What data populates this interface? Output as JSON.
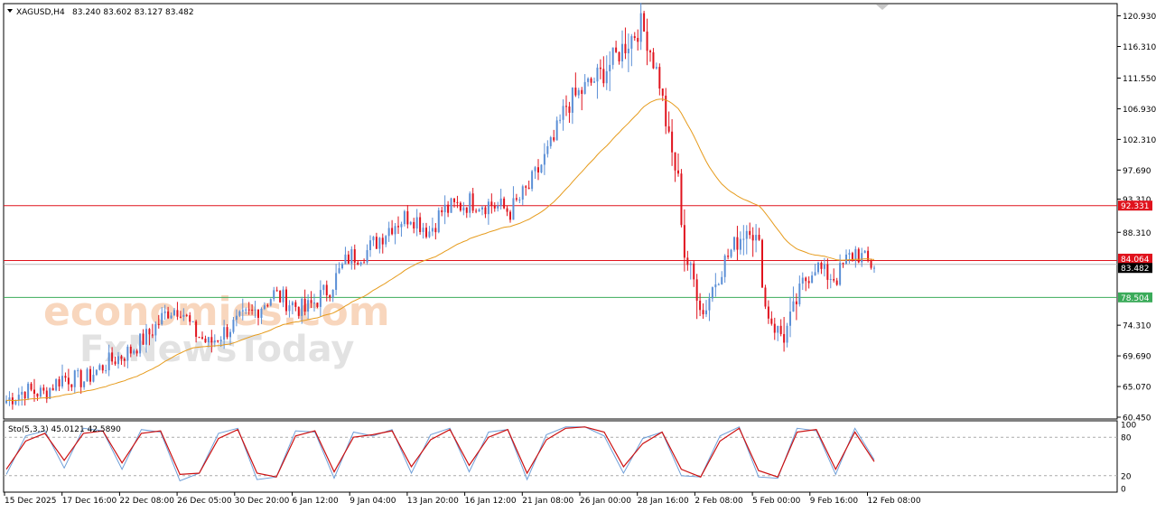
{
  "header": {
    "symbol_timeframe": "XAGUSD,H4",
    "ohlc": "83.240 83.602 83.127 83.482"
  },
  "watermark": {
    "line1": "economies.com",
    "line2": "FxNewsToday"
  },
  "colors": {
    "bull": "#5b8fd6",
    "bear": "#e0131d",
    "ma": "#e69b1c",
    "resistance": "#e0131d",
    "support": "#3bab5a",
    "price": "#b0b0b0",
    "stoch_main": "#6f9fd8",
    "stoch_signal": "#cc1111"
  },
  "price_axis": {
    "ticks": [
      "120.930",
      "116.310",
      "111.550",
      "106.930",
      "102.310",
      "97.690",
      "93.310",
      "88.310",
      "83.690",
      "78.504",
      "74.310",
      "69.690",
      "65.070",
      "60.450"
    ]
  },
  "levels": {
    "resistance_1": {
      "value": 92.331,
      "label": "92.331"
    },
    "resistance_2": {
      "value": 84.064,
      "label": "84.064"
    },
    "support_1": {
      "value": 78.504,
      "label": "78.504"
    },
    "current_price": {
      "value": 83.482,
      "label": "83.482"
    }
  },
  "time_axis": {
    "labels": [
      "15 Dec 2025",
      "17 Dec 16:00",
      "22 Dec 08:00",
      "26 Dec 05:00",
      "30 Dec 20:00",
      "6 Jan 12:00",
      "9 Jan 04:00",
      "13 Jan 20:00",
      "16 Jan 12:00",
      "21 Jan 08:00",
      "26 Jan 00:00",
      "28 Jan 16:00",
      "2 Feb 08:00",
      "5 Feb 00:00",
      "9 Feb 16:00",
      "12 Feb 08:00"
    ]
  },
  "stochastic": {
    "label": "Sto(5,3,3) 45.0121 42.5890",
    "ticks": [
      "100",
      "80",
      "20",
      "0"
    ],
    "levels": [
      80,
      20
    ]
  },
  "chart_data": {
    "type": "candlestick",
    "symbol": "XAGUSD",
    "timeframe": "H4",
    "ylim": [
      60.45,
      122.5
    ],
    "anchors": [
      [
        0,
        63.0
      ],
      [
        6,
        64.5
      ],
      [
        12,
        64.0
      ],
      [
        18,
        66.5
      ],
      [
        25,
        66.0
      ],
      [
        32,
        68.5
      ],
      [
        40,
        70.5
      ],
      [
        46,
        73.0
      ],
      [
        52,
        76.5
      ],
      [
        56,
        77.0
      ],
      [
        60,
        73.5
      ],
      [
        65,
        71.5
      ],
      [
        72,
        74.0
      ],
      [
        80,
        76.5
      ],
      [
        86,
        79.0
      ],
      [
        90,
        78.0
      ],
      [
        96,
        76.5
      ],
      [
        104,
        80.0
      ],
      [
        110,
        84.5
      ],
      [
        116,
        85.5
      ],
      [
        124,
        89.5
      ],
      [
        130,
        91.0
      ],
      [
        136,
        88.5
      ],
      [
        140,
        91.5
      ],
      [
        150,
        93.0
      ],
      [
        156,
        92.5
      ],
      [
        162,
        91.5
      ],
      [
        168,
        95.0
      ],
      [
        176,
        102.0
      ],
      [
        180,
        107.5
      ],
      [
        186,
        110.0
      ],
      [
        192,
        112.5
      ],
      [
        198,
        116.0
      ],
      [
        204,
        119.5
      ],
      [
        206,
        117.5
      ],
      [
        210,
        111.0
      ],
      [
        213,
        102.0
      ],
      [
        216,
        96.0
      ],
      [
        218,
        85.0
      ],
      [
        221,
        81.0
      ],
      [
        224,
        76.0
      ],
      [
        227,
        80.0
      ],
      [
        231,
        84.0
      ],
      [
        235,
        87.0
      ],
      [
        239,
        89.5
      ],
      [
        242,
        86.0
      ],
      [
        244,
        77.0
      ],
      [
        247,
        74.0
      ],
      [
        250,
        72.5
      ],
      [
        253,
        76.5
      ],
      [
        256,
        80.5
      ],
      [
        260,
        83.5
      ],
      [
        263,
        82.0
      ],
      [
        267,
        81.5
      ],
      [
        270,
        84.0
      ],
      [
        273,
        85.5
      ],
      [
        276,
        84.0
      ],
      [
        278,
        83.5
      ]
    ],
    "stoch_main_series": [
      22,
      82,
      90,
      32,
      94,
      90,
      30,
      92,
      88,
      12,
      24,
      86,
      94,
      14,
      18,
      90,
      88,
      16,
      88,
      82,
      92,
      24,
      84,
      94,
      26,
      88,
      92,
      14,
      84,
      96,
      96,
      82,
      24,
      78,
      88,
      20,
      18,
      82,
      96,
      18,
      16,
      94,
      90,
      22,
      94,
      45
    ],
    "stoch_signal_series": [
      30,
      74,
      86,
      44,
      86,
      90,
      40,
      86,
      90,
      22,
      24,
      78,
      92,
      24,
      18,
      82,
      90,
      26,
      80,
      84,
      90,
      34,
      76,
      92,
      36,
      80,
      92,
      24,
      76,
      94,
      96,
      88,
      34,
      70,
      88,
      30,
      18,
      74,
      94,
      28,
      18,
      88,
      92,
      30,
      88,
      42
    ]
  }
}
